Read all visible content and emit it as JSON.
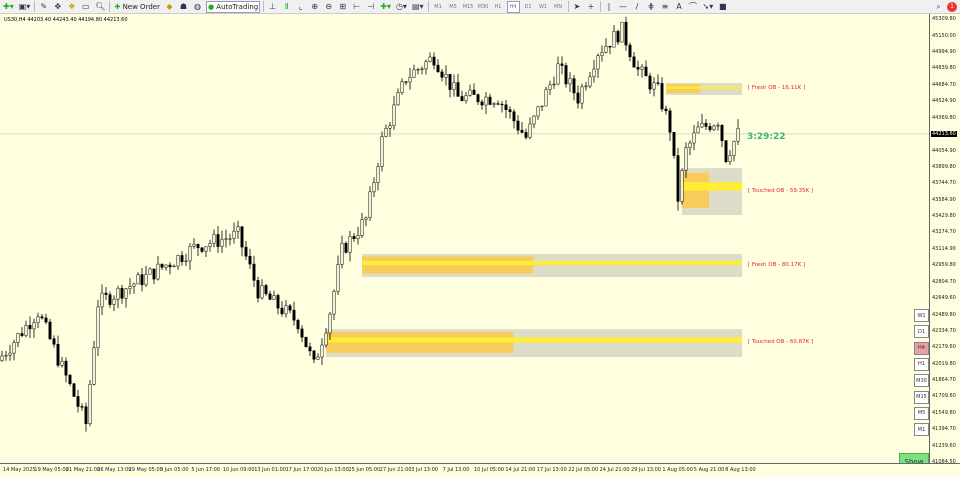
{
  "toolbar": {
    "new_order": "New Order",
    "auto_trading": "AutoTrading",
    "timeframes": [
      "M1",
      "M5",
      "M15",
      "M30",
      "H1",
      "H4",
      "D1",
      "W1",
      "MN"
    ],
    "active_timeframe": "H4",
    "notification_count": "1"
  },
  "chart": {
    "title": "US30,H4  44203.40 44243.40 44194.80 44213.60",
    "current_price": "44213.60",
    "timer": "3:29:22",
    "price_labels": [
      "45309.80",
      "45150.00",
      "44994.90",
      "44839.80",
      "44684.70",
      "44524.90",
      "44369.80",
      "44054.90",
      "43899.80",
      "43744.70",
      "43584.90",
      "43429.80",
      "43274.70",
      "43114.90",
      "42959.80",
      "42804.70",
      "42649.60",
      "42489.80",
      "42334.70",
      "42179.60",
      "42019.80",
      "41864.70",
      "41709.60",
      "41549.80",
      "41394.70",
      "41239.60",
      "41084.50"
    ],
    "price_range": [
      41084.5,
      45309.8
    ],
    "time_labels": [
      "14 May 2025",
      "19 May 05:00",
      "21 May 21:00",
      "26 May 13:00",
      "29 May 05:00",
      "3 Jun 05:00",
      "5 Jun 17:00",
      "10 Jun 09:00",
      "13 Jun 01:00",
      "17 Jun 17:00",
      "20 Jun 13:00",
      "25 Jun 05:00",
      "27 Jun 21:00",
      "3 Jul 13:00",
      "7 Jul 13:00",
      "10 Jul 05:00",
      "14 Jul 21:00",
      "17 Jul 13:00",
      "22 Jul 05:00",
      "24 Jul 21:00",
      "29 Jul 13:00",
      "1 Aug 05:00",
      "5 Aug 21:00",
      "8 Aug 13:00"
    ],
    "price_path": [
      [
        0,
        42050
      ],
      [
        10,
        42520
      ],
      [
        22,
        41450
      ],
      [
        25,
        42600
      ],
      [
        37,
        42850
      ],
      [
        50,
        43150
      ],
      [
        60,
        43250
      ],
      [
        65,
        42720
      ],
      [
        75,
        42420
      ],
      [
        79,
        42000
      ],
      [
        83,
        42520
      ],
      [
        86,
        43100
      ],
      [
        92,
        43400
      ],
      [
        96,
        44150
      ],
      [
        102,
        44750
      ],
      [
        109,
        44950
      ],
      [
        115,
        44560
      ],
      [
        125,
        44560
      ],
      [
        132,
        44180
      ],
      [
        140,
        44850
      ],
      [
        145,
        44560
      ],
      [
        150,
        45000
      ],
      [
        156,
        45200
      ],
      [
        160,
        44820
      ],
      [
        165,
        44620
      ],
      [
        168,
        44270
      ],
      [
        170,
        43600
      ],
      [
        172,
        44050
      ],
      [
        175,
        44250
      ],
      [
        180,
        44350
      ],
      [
        182,
        44000
      ],
      [
        185,
        44213.6
      ]
    ],
    "zones": [
      {
        "label": "[ Fresh OB - 16.11K ]",
        "top": 44699,
        "bottom": 44585,
        "start": 166
      },
      {
        "label": "[ Touched OB - 59.35K ]",
        "top": 43888,
        "bottom": 43440,
        "start": 170
      },
      {
        "label": "[ Fresh OB - 80.17K ]",
        "top": 43068,
        "bottom": 42848,
        "start": 90
      },
      {
        "label": "[ Touched OB - 60.87K ]",
        "top": 42352,
        "bottom": 42085,
        "start": 81
      }
    ],
    "timeframe_buttons": [
      "W1",
      "D1",
      "H4",
      "H1",
      "M30",
      "M15",
      "M5",
      "M1"
    ],
    "show_button": "Show"
  },
  "colors": {
    "background": "#ffffe0",
    "zone_gray": "#dcdcc8",
    "zone_yellow": "#ffee33",
    "zone_orange": "#ffc840",
    "zone_label": "#e0204a",
    "timer": "#3cb371"
  }
}
